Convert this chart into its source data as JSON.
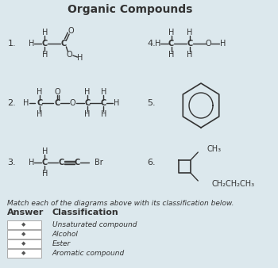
{
  "title": "Organic Compounds",
  "bg_color": "#dce8ed",
  "text_color": "#333333",
  "font_size_title": 10,
  "font_size_label": 7,
  "font_size_number": 8,
  "font_size_answer": 8,
  "match_text": "Match each of the diagrams above with its classification below.",
  "answer_header": "Answer",
  "classification_header": "Classification",
  "classifications": [
    "Unsaturated compound",
    "Alcohol",
    "Ester",
    "Aromatic compound"
  ]
}
